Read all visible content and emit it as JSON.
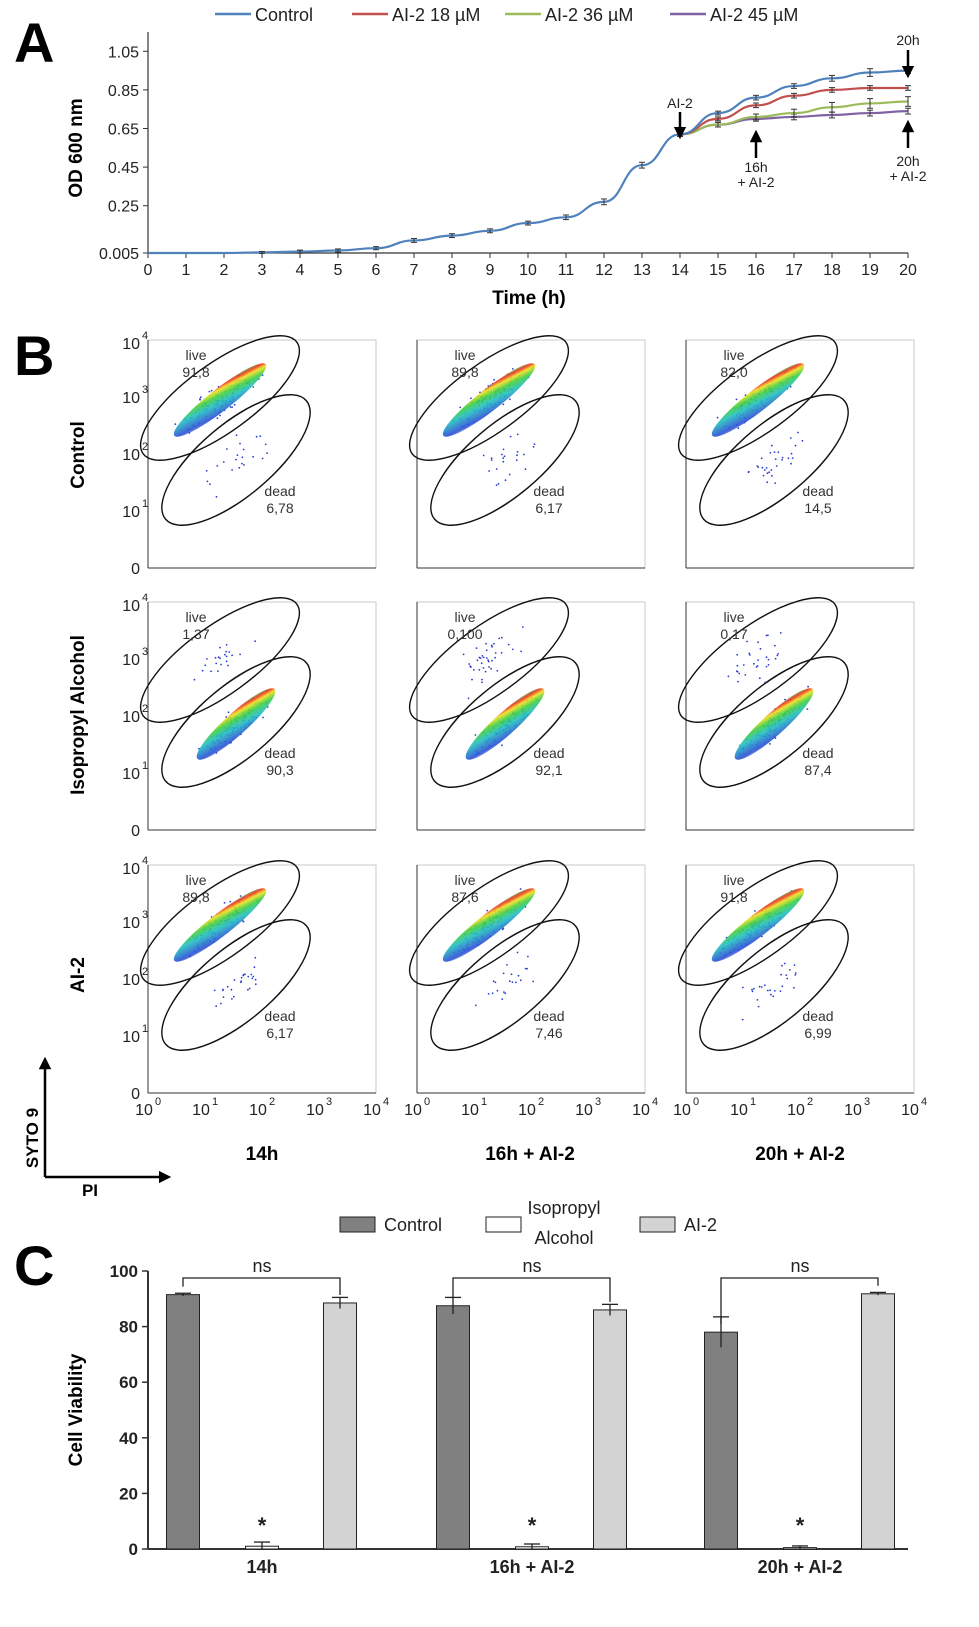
{
  "colors": {
    "control": "#4f81bd",
    "ai2_18": "#c0504d",
    "ai2_36": "#9bbb59",
    "ai2_45": "#8064a2",
    "bar_control": "#808080",
    "bar_isopropyl": "#ffffff",
    "bar_ai2": "#d3d3d3"
  },
  "panel_letters": [
    "A",
    "B",
    "C"
  ],
  "chart_data": [
    {
      "type": "line",
      "panel": "A",
      "title": "",
      "xlabel": "Time (h)",
      "ylabel": "OD 600 nm",
      "xlim": [
        0,
        20
      ],
      "ylim": [
        0.005,
        1.15
      ],
      "x_ticks": [
        "0",
        "1",
        "2",
        "3",
        "4",
        "5",
        "6",
        "7",
        "8",
        "9",
        "10",
        "11",
        "12",
        "13",
        "14",
        "15",
        "16",
        "17",
        "18",
        "19",
        "20"
      ],
      "y_ticks": [
        {
          "v": 0.005,
          "label": "0.005"
        },
        {
          "v": 0.25,
          "label": "0.25"
        },
        {
          "v": 0.45,
          "label": "0.45"
        },
        {
          "v": 0.65,
          "label": "0.65"
        },
        {
          "v": 0.85,
          "label": "0.85"
        },
        {
          "v": 1.05,
          "label": "1.05"
        }
      ],
      "legend": [
        "Control",
        "AI-2 18 µM",
        "AI-2 36 µM",
        "AI-2 45 µM"
      ],
      "series": [
        {
          "name": "Control",
          "x": [
            0,
            1,
            2,
            3,
            4,
            5,
            6,
            7,
            8,
            9,
            10,
            11,
            12,
            13,
            14,
            15,
            16,
            17,
            18,
            19,
            20
          ],
          "y": [
            0.005,
            0.005,
            0.005,
            0.008,
            0.012,
            0.018,
            0.03,
            0.07,
            0.095,
            0.12,
            0.16,
            0.19,
            0.27,
            0.46,
            0.62,
            0.73,
            0.81,
            0.87,
            0.91,
            0.94,
            0.95
          ],
          "err": [
            0,
            0,
            0,
            0.005,
            0.008,
            0.008,
            0.008,
            0.01,
            0.01,
            0.01,
            0.01,
            0.012,
            0.015,
            0.015,
            0.01,
            0.01,
            0.012,
            0.012,
            0.015,
            0.02,
            0.015
          ]
        },
        {
          "name": "AI-2 18 µM",
          "x": [
            14,
            15,
            16,
            17,
            18,
            19,
            20
          ],
          "y": [
            0.62,
            0.7,
            0.77,
            0.82,
            0.85,
            0.86,
            0.86
          ],
          "err": [
            0.01,
            0.01,
            0.012,
            0.012,
            0.012,
            0.012,
            0.012
          ]
        },
        {
          "name": "AI-2 36 µM",
          "x": [
            14,
            15,
            16,
            17,
            18,
            19,
            20
          ],
          "y": [
            0.62,
            0.67,
            0.71,
            0.73,
            0.76,
            0.78,
            0.79
          ],
          "err": [
            0.01,
            0.012,
            0.015,
            0.02,
            0.025,
            0.025,
            0.025
          ]
        },
        {
          "name": "AI-2 45 µM",
          "x": [
            14,
            15,
            16,
            17,
            18,
            19,
            20
          ],
          "y": [
            0.62,
            0.67,
            0.7,
            0.71,
            0.72,
            0.73,
            0.74
          ],
          "err": [
            0.01,
            0.012,
            0.012,
            0.015,
            0.015,
            0.015,
            0.015
          ]
        }
      ],
      "annotations": [
        {
          "text": "AI-2",
          "x": 14,
          "arrow": "down"
        },
        {
          "text": "20h",
          "x": 20,
          "arrow": "down"
        },
        {
          "text_lines": [
            "16h",
            "+ AI-2"
          ],
          "x": 16,
          "arrow": "up"
        },
        {
          "text_lines": [
            "20h",
            "+ AI-2"
          ],
          "x": 20,
          "arrow": "up"
        }
      ]
    },
    {
      "type": "scatter",
      "panel": "B",
      "description": "Flow cytometry density plots, 3 x 3 grid",
      "x_axis_label": "PI",
      "y_axis_label": "SYTO 9",
      "tick_base": "10",
      "tick_exps": [
        "0",
        "1",
        "2",
        "3",
        "4"
      ],
      "y_tick_labels": [
        "0",
        "10",
        "10",
        "10",
        "10"
      ],
      "row_labels": [
        "Control",
        "Isopropyl Alcohol",
        "AI-2"
      ],
      "column_labels": [
        "14h",
        "16h + AI-2",
        "20h + AI-2"
      ],
      "gate_labels": {
        "live": "live",
        "dead": "dead"
      },
      "grid": [
        [
          {
            "live": "91,8",
            "dead": "6,78"
          },
          {
            "live": "89,8",
            "dead": "6,17"
          },
          {
            "live": "82,0",
            "dead": "14,5"
          }
        ],
        [
          {
            "live": "1,37",
            "dead": "90,3"
          },
          {
            "live": "0,100",
            "dead": "92,1"
          },
          {
            "live": "0,17",
            "dead": "87,4"
          }
        ],
        [
          {
            "live": "89,8",
            "dead": "6,17"
          },
          {
            "live": "87,6",
            "dead": "7,46"
          },
          {
            "live": "91,8",
            "dead": "6,99"
          }
        ]
      ]
    },
    {
      "type": "bar",
      "panel": "C",
      "title": "",
      "xlabel": "",
      "ylabel": "Cell Viability",
      "ylim": [
        0,
        100
      ],
      "y_ticks": [
        "0",
        "20",
        "40",
        "60",
        "80",
        "100"
      ],
      "categories": [
        "14h",
        "16h + AI-2",
        "20h + AI-2"
      ],
      "legend": [
        "Control",
        "Isopropyl Alcohol",
        "AI-2"
      ],
      "legend_lines": [
        [
          "Control"
        ],
        [
          "Isopropyl",
          "Alcohol"
        ],
        [
          "AI-2"
        ]
      ],
      "series": [
        {
          "name": "Control",
          "values": [
            91.5,
            87.5,
            78
          ],
          "err": [
            0.5,
            3,
            5.5
          ]
        },
        {
          "name": "Isopropyl Alcohol",
          "values": [
            1,
            0.8,
            0.5
          ],
          "err": [
            1.5,
            1,
            0.6
          ]
        },
        {
          "name": "AI-2",
          "values": [
            88.5,
            86,
            91.8
          ],
          "err": [
            2,
            2,
            0.5
          ]
        }
      ],
      "significance": [
        {
          "category": 0,
          "bracket": "ns",
          "star": "*"
        },
        {
          "category": 1,
          "bracket": "ns",
          "star": "*"
        },
        {
          "category": 2,
          "bracket": "ns",
          "star": "*"
        }
      ]
    }
  ]
}
